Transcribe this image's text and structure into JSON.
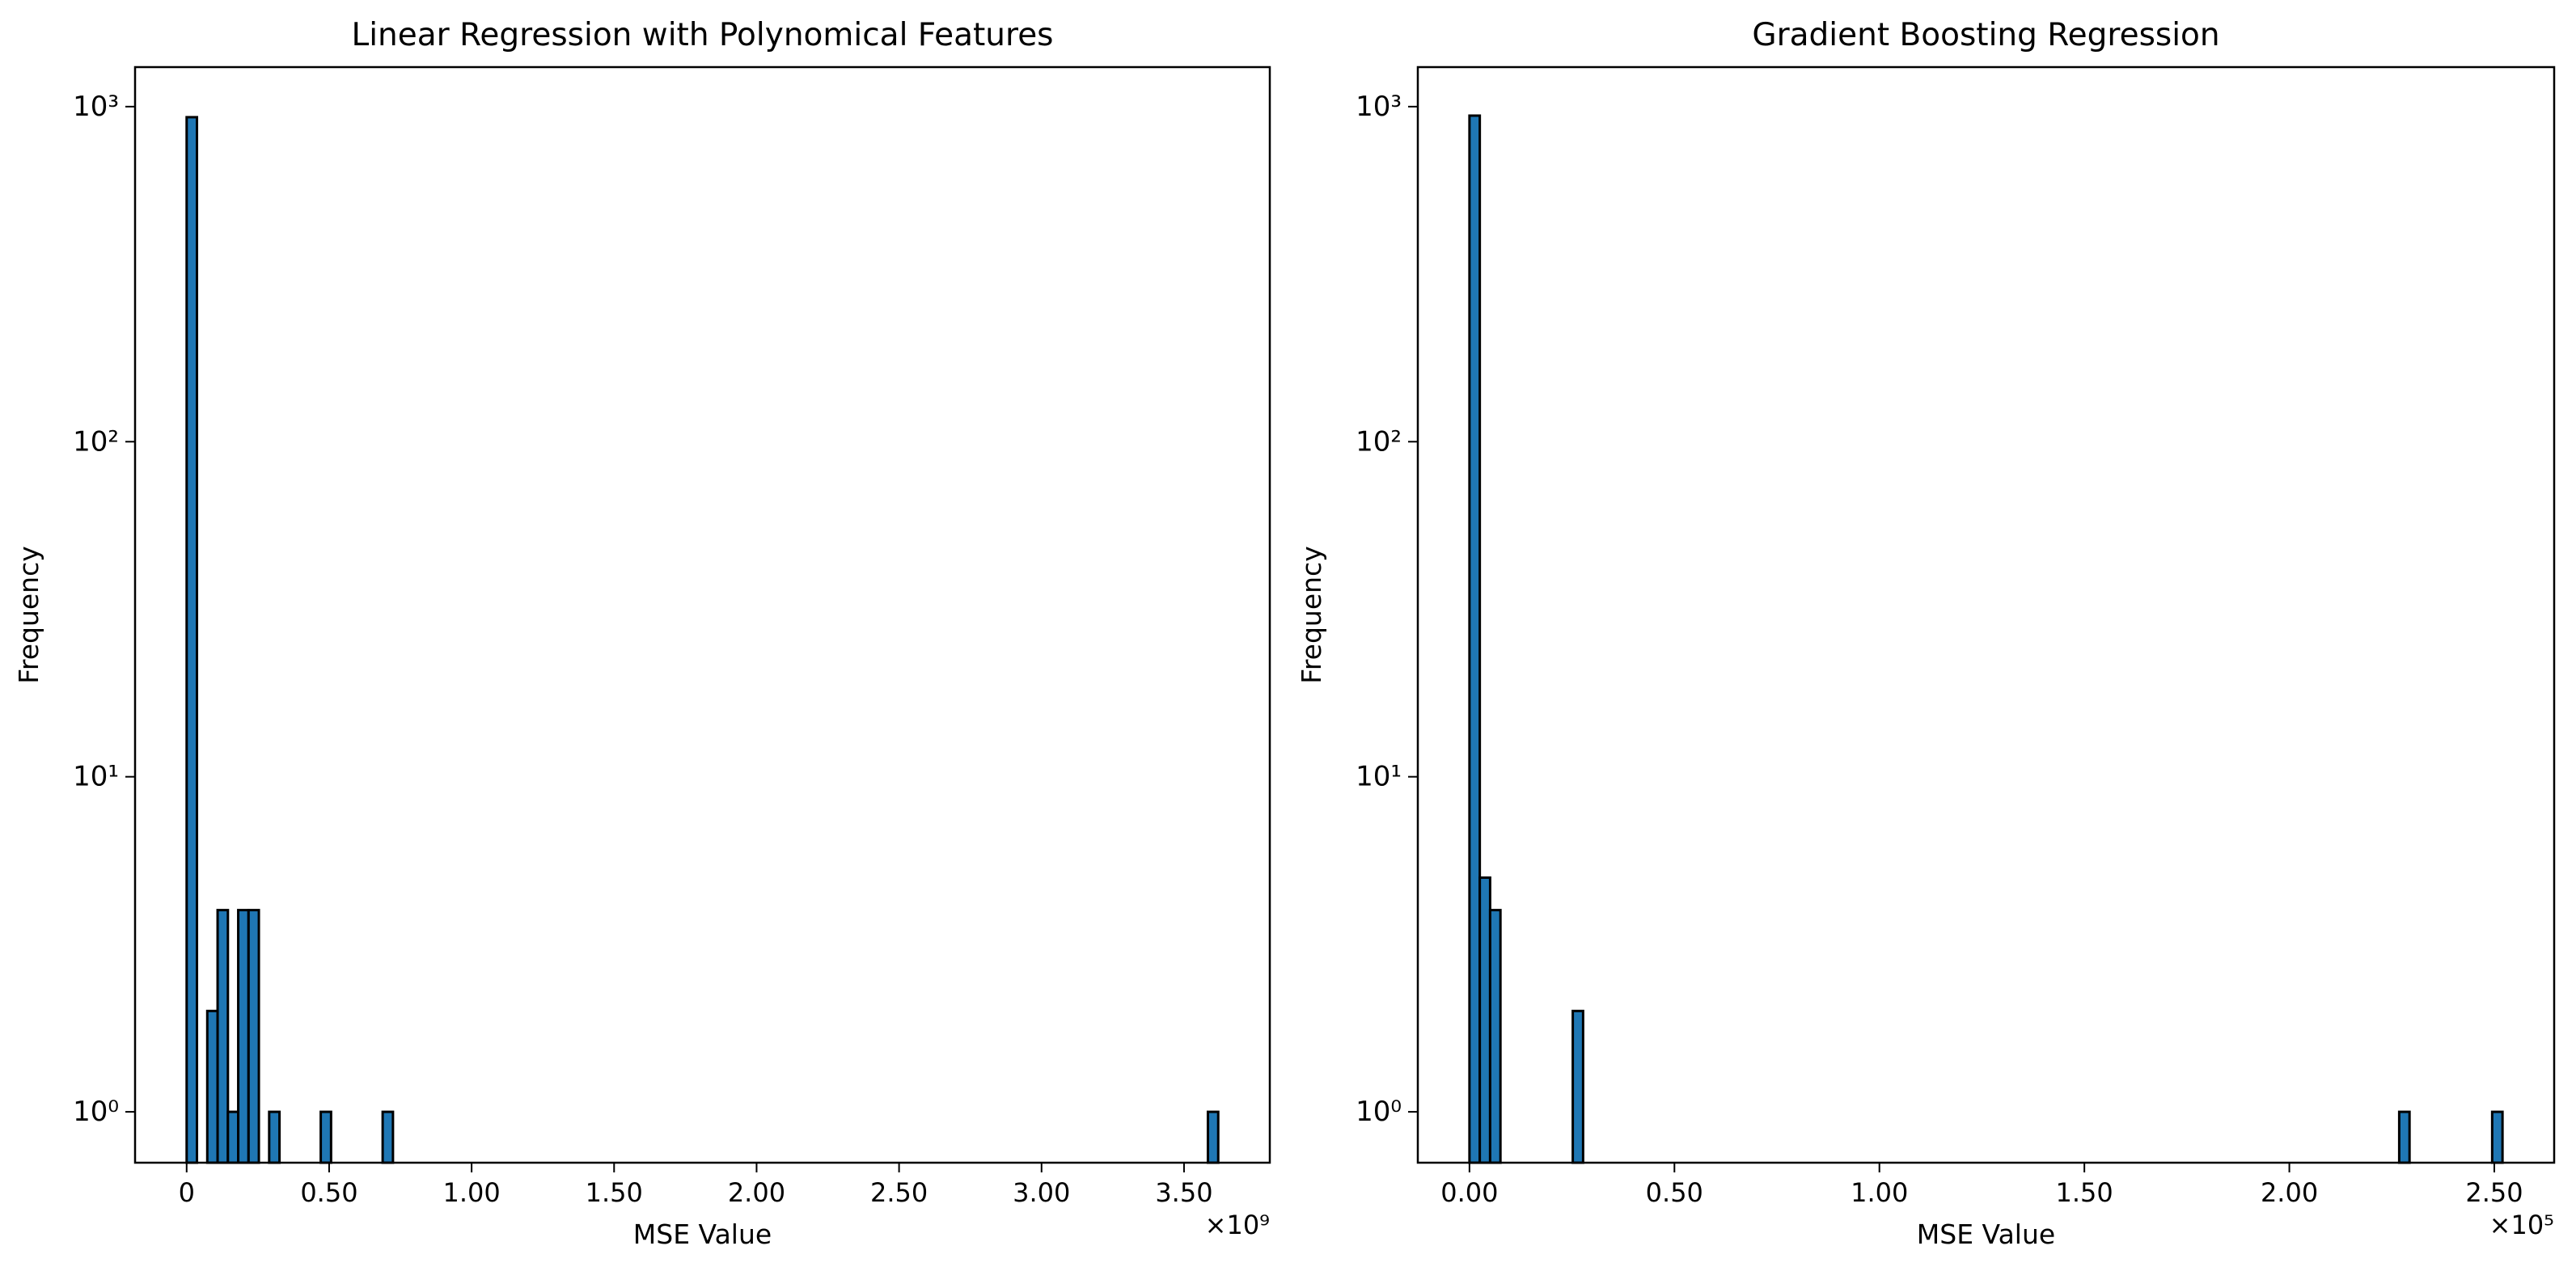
{
  "chart_data": [
    {
      "type": "histogram",
      "title": "Linear Regression with Polynomical Features",
      "xlabel": "MSE Value",
      "ylabel": "Frequency",
      "bins": [
        0,
        36200000,
        72400000,
        108600000,
        144800000,
        181000000,
        217200000,
        253400000,
        289600000,
        325800000,
        470600000,
        506800000,
        687800000,
        724000000,
        3583800000,
        3620000000
      ],
      "values": [
        930,
        0,
        2,
        4,
        1,
        4,
        4,
        0,
        1,
        0,
        1,
        0,
        1,
        0,
        1
      ],
      "color": "#1f77b4",
      "edgecolor": "#000000",
      "log_y": true,
      "xlim": [
        -181000000,
        3801000000
      ],
      "xticks": [
        0,
        {
          "value": 500000000,
          "label": "0.50"
        },
        {
          "value": 1000000000,
          "label": "1.00"
        },
        {
          "value": 1500000000,
          "label": "1.50"
        },
        {
          "value": 2000000000,
          "label": "2.00"
        },
        {
          "value": 2500000000,
          "label": "2.50"
        },
        {
          "value": 3000000000,
          "label": "3.00"
        },
        {
          "value": 3500000000,
          "label": "3.50"
        }
      ],
      "x_offset_text": "×10⁹",
      "ylim": [
        0.705,
        1312
      ],
      "yticks": [
        {
          "value": 1,
          "label": "10⁰"
        },
        {
          "value": 10,
          "label": "10¹"
        },
        {
          "value": 100,
          "label": "10²"
        },
        {
          "value": 1000,
          "label": "10³"
        }
      ]
    },
    {
      "type": "histogram",
      "title": "Gradient Boosting Regression",
      "xlabel": "MSE Value",
      "ylabel": "Frequency",
      "bins": [
        0,
        2520,
        5040,
        7560,
        25200,
        27720,
        226800,
        229320,
        249480,
        252000
      ],
      "values": [
        940,
        5,
        4,
        0,
        2,
        0,
        1,
        0,
        1
      ],
      "color": "#1f77b4",
      "edgecolor": "#000000",
      "log_y": true,
      "xlim": [
        -12600,
        264600
      ],
      "xticks": [
        {
          "value": 0,
          "label": "0.00"
        },
        {
          "value": 50000,
          "label": "0.50"
        },
        {
          "value": 100000,
          "label": "1.00"
        },
        {
          "value": 150000,
          "label": "1.50"
        },
        {
          "value": 200000,
          "label": "2.00"
        },
        {
          "value": 250000,
          "label": "2.50"
        }
      ],
      "x_offset_text": "×10⁵",
      "ylim": [
        0.705,
        1312
      ],
      "yticks": [
        {
          "value": 1,
          "label": "10⁰"
        },
        {
          "value": 10,
          "label": "10¹"
        },
        {
          "value": 100,
          "label": "10²"
        },
        {
          "value": 1000,
          "label": "10³"
        }
      ]
    }
  ]
}
